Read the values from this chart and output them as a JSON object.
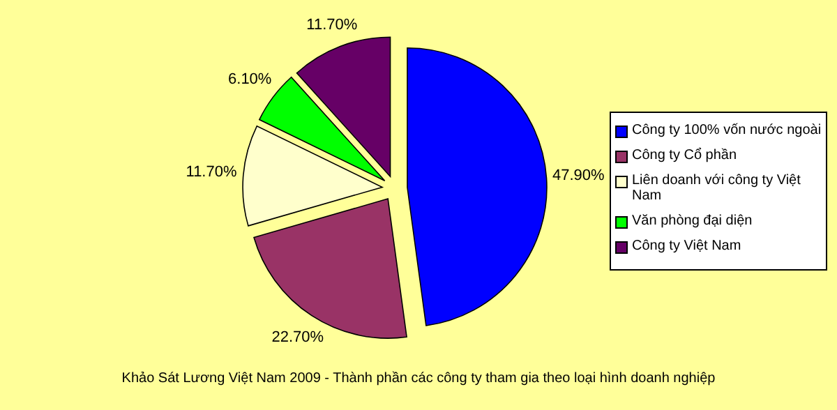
{
  "chart_data": {
    "type": "pie",
    "title": "Khảo Sát Lương Việt Nam 2009 - Thành phần các công ty tham gia theo loại hình doanh nghiệp",
    "categories": [
      "Công ty 100% vốn nước ngoài",
      "Công ty Cổ phần",
      "Liên doanh với công ty Việt Nam",
      "Văn phòng đại diện",
      "Công ty Việt Nam"
    ],
    "values": [
      47.9,
      22.7,
      11.7,
      6.1,
      11.7
    ],
    "value_labels": [
      "47.90%",
      "22.70%",
      "11.70%",
      "6.10%",
      "11.70%"
    ],
    "colors": [
      "#0000ff",
      "#993366",
      "#ffffcc",
      "#00ff00",
      "#660066"
    ],
    "legend": "right"
  }
}
